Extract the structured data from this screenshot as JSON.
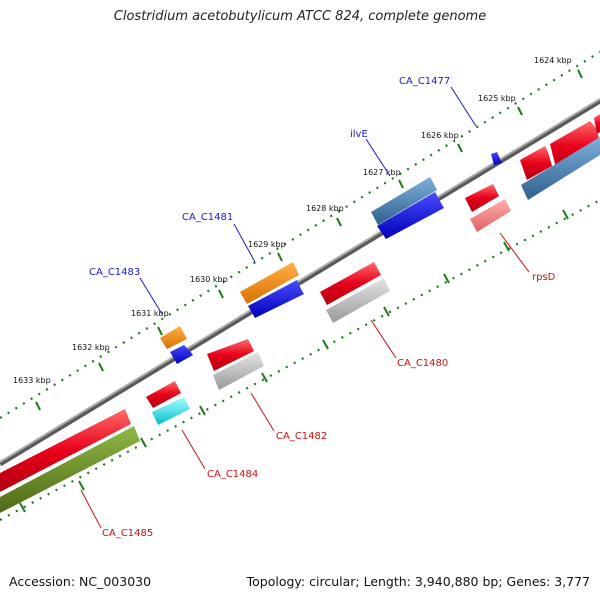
{
  "title": "Clostridium acetobutylicum ATCC 824, complete genome",
  "footer": {
    "accession": "Accession: NC_003030",
    "summary": "Topology: circular; Length: 3,940,880 bp; Genes: 3,777"
  },
  "colors": {
    "backbone": "#888888",
    "tick": "#1f7a1f",
    "cds_red": "#e8001a",
    "cds_pink": "#f08080",
    "cds_grey": "#b0b0b0",
    "cds_blue": "#1010e0",
    "cds_steel": "#4a80b4",
    "cds_orange": "#ff8c00",
    "cds_cyan": "#00e5ee",
    "cds_olive": "#6b8e23",
    "label_top": "#1a1acc",
    "label_bottom": "#cc1111"
  },
  "kbp_labels": [
    "1624 kbp",
    "1625 kbp",
    "1626 kbp",
    "1627 kbp",
    "1628 kbp",
    "1629 kbp",
    "1630 kbp",
    "1631 kbp",
    "1632 kbp",
    "1633 kbp"
  ],
  "gene_labels_top": [
    "CA_C1477",
    "ilvE",
    "CA_C1481",
    "CA_C1483"
  ],
  "gene_labels_bottom": [
    "rpsD",
    "CA_C1480",
    "CA_C1482",
    "CA_C1484",
    "CA_C1485"
  ]
}
